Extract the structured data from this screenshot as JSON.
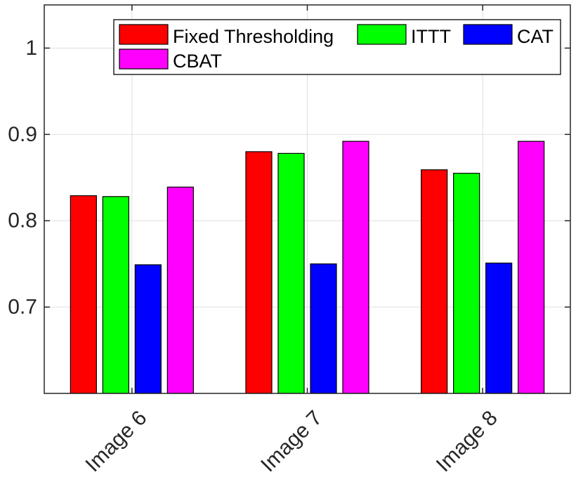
{
  "chart_data": {
    "type": "bar",
    "title": "",
    "xlabel": "",
    "ylabel": "",
    "categories": [
      "Image 6",
      "Image 7",
      "Image 8"
    ],
    "ylim": [
      0.6,
      1.05
    ],
    "yticks": [
      0.7,
      0.8,
      0.9,
      1
    ],
    "ytick_labels": [
      "0.7",
      "0.8",
      "0.9",
      "1"
    ],
    "grid": true,
    "legend_position": "top-right",
    "series": [
      {
        "name": "Fixed Thresholding",
        "color": "#ff0000",
        "values": [
          0.829,
          0.88,
          0.859
        ]
      },
      {
        "name": "ITTT",
        "color": "#00ff00",
        "values": [
          0.828,
          0.878,
          0.855
        ]
      },
      {
        "name": "CAT",
        "color": "#0000ff",
        "values": [
          0.749,
          0.75,
          0.751
        ]
      },
      {
        "name": "CBAT",
        "color": "#ff00ff",
        "values": [
          0.839,
          0.892,
          0.892
        ]
      }
    ]
  }
}
